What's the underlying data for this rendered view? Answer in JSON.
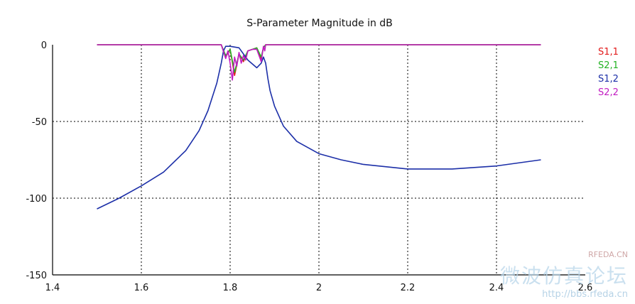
{
  "chart_data": {
    "type": "line",
    "title": "S-Parameter Magnitude in dB",
    "xlim": [
      1.4,
      2.6
    ],
    "ylim": [
      -150,
      0
    ],
    "x_ticks": [
      "1.4",
      "1.6",
      "1.8",
      "2",
      "2.2",
      "2.4",
      "2.6"
    ],
    "y_ticks": [
      "0",
      "-50",
      "-100",
      "-150"
    ],
    "grid": "dashed",
    "legend_placement": "right",
    "series": [
      {
        "name": "S1,1",
        "color": "#e21b1b",
        "x": [
          1.5,
          1.78,
          1.79,
          1.8,
          1.81,
          1.82,
          1.83,
          1.84,
          1.85,
          1.86,
          1.87,
          1.875,
          1.88,
          1.89,
          2.5
        ],
        "y": [
          0,
          0,
          -8,
          -3,
          -20,
          -6,
          -11,
          -4,
          -3,
          -2,
          -9,
          -2,
          0,
          0,
          0
        ]
      },
      {
        "name": "S2,1",
        "color": "#22b222",
        "x": [
          1.5,
          1.78,
          1.79,
          1.8,
          1.81,
          1.82,
          1.83,
          1.84,
          1.85,
          1.86,
          1.87,
          1.875,
          1.88,
          1.89,
          2.5
        ],
        "y": [
          0,
          0,
          -7,
          -3,
          -18,
          -6,
          -10,
          -4,
          -3,
          -2,
          -8,
          -2,
          0,
          0,
          0
        ]
      },
      {
        "name": "S1,2",
        "color": "#1c2fa8",
        "x": [
          1.5,
          1.55,
          1.6,
          1.65,
          1.7,
          1.73,
          1.75,
          1.77,
          1.78,
          1.785,
          1.79,
          1.8,
          1.82,
          1.84,
          1.86,
          1.87,
          1.875,
          1.88,
          1.885,
          1.89,
          1.9,
          1.92,
          1.95,
          2.0,
          2.05,
          2.1,
          2.2,
          2.3,
          2.4,
          2.5
        ],
        "y": [
          -107,
          -100,
          -92,
          -83,
          -69,
          -56,
          -43,
          -25,
          -12,
          -4,
          -1,
          -1,
          -2,
          -10,
          -15,
          -12,
          -8,
          -12,
          -22,
          -30,
          -40,
          -53,
          -63,
          -71,
          -75,
          -78,
          -81,
          -81,
          -79,
          -75
        ]
      },
      {
        "name": "S2,2",
        "color": "#c21bc2",
        "x": [
          1.5,
          1.78,
          1.79,
          1.795,
          1.8,
          1.805,
          1.81,
          1.815,
          1.82,
          1.825,
          1.83,
          1.835,
          1.84,
          1.85,
          1.86,
          1.87,
          1.875,
          1.878,
          1.88,
          1.89,
          2.5
        ],
        "y": [
          0,
          0,
          -9,
          -4,
          -12,
          -23,
          -8,
          -14,
          -5,
          -12,
          -7,
          -10,
          -4,
          -3,
          -3,
          -11,
          -1,
          -4,
          0,
          0,
          0
        ]
      }
    ]
  },
  "watermark": {
    "small": "RFEDA.CN",
    "big": "微波仿真论坛",
    "url": "http://bbs.rfeda.cn"
  }
}
